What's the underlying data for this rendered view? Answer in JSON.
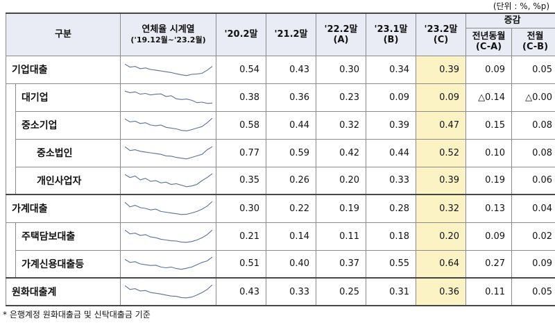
{
  "unit_note": "(단위 : %, %p)",
  "header": {
    "category": "구분",
    "spark_title": "연체율 시계열",
    "spark_period": "('19.12월~'23.2월)",
    "cols": [
      {
        "line1": "'20.2말",
        "line2": ""
      },
      {
        "line1": "'21.2말",
        "line2": ""
      },
      {
        "line1": "'22.2말",
        "line2": "(A)"
      },
      {
        "line1": "'23.1말",
        "line2": "(B)"
      },
      {
        "line1": "'23.2말",
        "line2": "(C)"
      }
    ],
    "change_title": "증감",
    "change_cols": [
      {
        "line1": "전년동월",
        "line2": "(C-A)"
      },
      {
        "line1": "전월",
        "line2": "(C-B)"
      }
    ]
  },
  "rows": [
    {
      "label": "기업대출",
      "level": 0,
      "values": [
        "0.54",
        "0.43",
        "0.30",
        "0.34",
        "0.39"
      ],
      "changes": [
        "0.09",
        "0.05"
      ]
    },
    {
      "label": "대기업",
      "level": 1,
      "values": [
        "0.38",
        "0.36",
        "0.23",
        "0.09",
        "0.09"
      ],
      "changes": [
        "△0.14",
        "△0.00"
      ]
    },
    {
      "label": "중소기업",
      "level": 1,
      "values": [
        "0.58",
        "0.44",
        "0.32",
        "0.39",
        "0.47"
      ],
      "changes": [
        "0.15",
        "0.08"
      ]
    },
    {
      "label": "중소법인",
      "level": 2,
      "values": [
        "0.77",
        "0.59",
        "0.42",
        "0.44",
        "0.52"
      ],
      "changes": [
        "0.10",
        "0.08"
      ]
    },
    {
      "label": "개인사업자",
      "level": 2,
      "values": [
        "0.35",
        "0.26",
        "0.20",
        "0.33",
        "0.39"
      ],
      "changes": [
        "0.19",
        "0.06"
      ]
    },
    {
      "label": "가계대출",
      "level": 0,
      "values": [
        "0.30",
        "0.22",
        "0.19",
        "0.28",
        "0.32"
      ],
      "changes": [
        "0.13",
        "0.04"
      ]
    },
    {
      "label": "주택담보대출",
      "level": 1,
      "values": [
        "0.21",
        "0.14",
        "0.11",
        "0.18",
        "0.20"
      ],
      "changes": [
        "0.09",
        "0.02"
      ]
    },
    {
      "label": "가계신용대출등",
      "level": 1,
      "values": [
        "0.51",
        "0.40",
        "0.37",
        "0.55",
        "0.64"
      ],
      "changes": [
        "0.27",
        "0.09"
      ]
    },
    {
      "label": "원화대출계",
      "level": 0,
      "values": [
        "0.43",
        "0.33",
        "0.25",
        "0.31",
        "0.36"
      ],
      "changes": [
        "0.11",
        "0.05"
      ]
    }
  ],
  "sparkline_color": "#5a6f9e",
  "highlight_color": "#fcf3c5",
  "footnote": "* 은행계정 원화대출금 및 신탁대출금 기준"
}
